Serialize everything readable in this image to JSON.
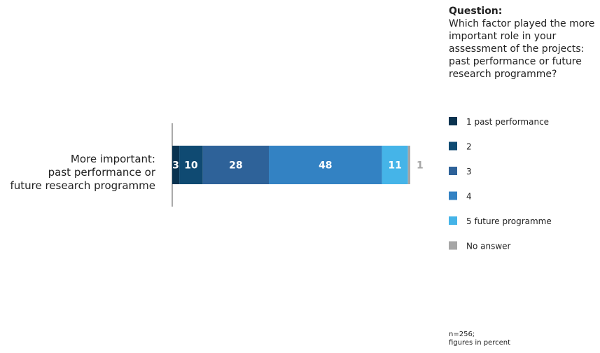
{
  "question": {
    "title": "Question:",
    "text": "Which factor played the more important role in your assessment of the projects: past performance or future research programme?"
  },
  "chart_data": {
    "type": "bar",
    "orientation": "horizontal",
    "stacked": true,
    "categories": [
      [
        "More important:",
        "past performance or",
        "future research programme"
      ]
    ],
    "series": [
      {
        "name": "1 past performance",
        "values": [
          3
        ],
        "color": "#0a3350"
      },
      {
        "name": "2",
        "values": [
          10
        ],
        "color": "#0f4a72"
      },
      {
        "name": "3",
        "values": [
          28
        ],
        "color": "#2e6299"
      },
      {
        "name": "4",
        "values": [
          48
        ],
        "color": "#3382c3"
      },
      {
        "name": "5 future programme",
        "values": [
          11
        ],
        "color": "#45b4e8"
      },
      {
        "name": "No answer",
        "values": [
          1
        ],
        "color": "#a6a6a6"
      }
    ],
    "xlim": [
      0,
      101
    ],
    "grid": false,
    "legend": "right"
  },
  "footnote": {
    "line1": "n=256;",
    "line2": "figures in percent"
  }
}
